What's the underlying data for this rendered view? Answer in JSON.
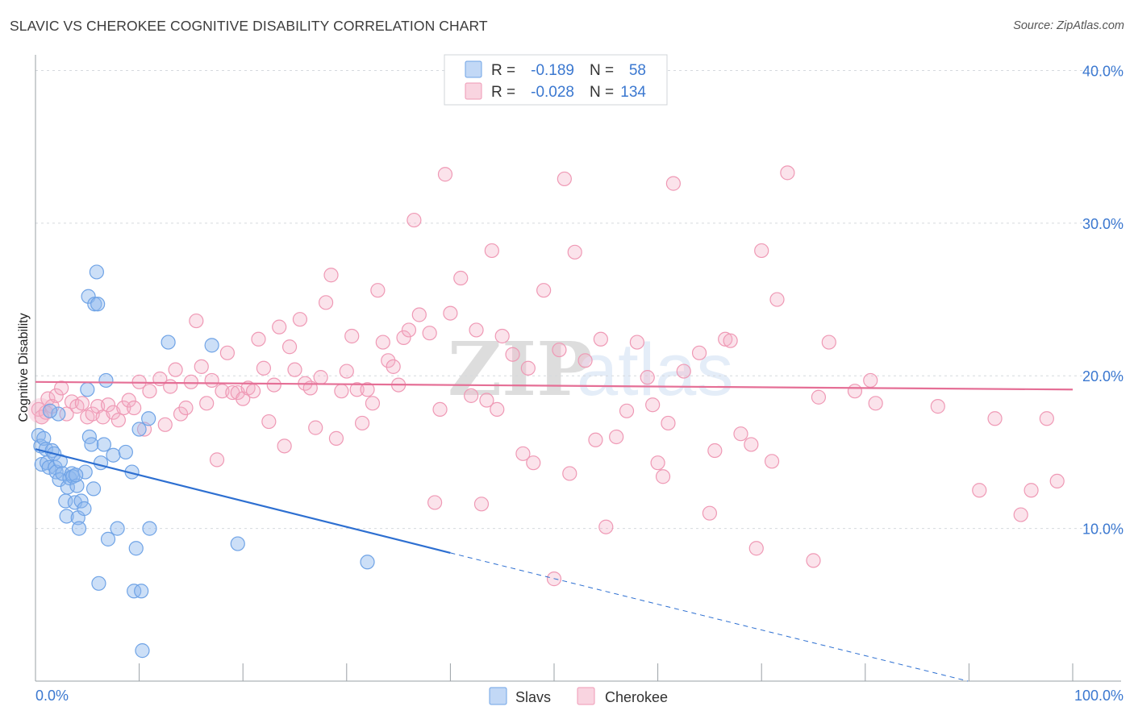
{
  "title": "SLAVIC VS CHEROKEE COGNITIVE DISABILITY CORRELATION CHART",
  "source": "Source: ZipAtlas.com",
  "colors": {
    "slavs": "#6fa3e6",
    "slavs_fill": "rgba(143,184,238,0.45)",
    "slavs_line": "#2d6fd1",
    "cherokee": "#ef99b5",
    "cherokee_fill": "rgba(244,176,199,0.35)",
    "cherokee_line": "#e56f96",
    "grid": "#d5d9de",
    "axis": "#9aa0a6",
    "tick_text": "#3b78d0"
  },
  "chart_data": {
    "type": "scatter",
    "title": "SLAVIC VS CHEROKEE COGNITIVE DISABILITY CORRELATION CHART",
    "xlabel": "",
    "ylabel": "Cognitive Disability",
    "xlim": [
      0,
      100
    ],
    "ylim": [
      0,
      40.5
    ],
    "x_tick_labels": [
      "0.0%",
      "100.0%"
    ],
    "y_ticks": [
      10,
      20,
      30,
      40
    ],
    "y_tick_labels": [
      "10.0%",
      "20.0%",
      "30.0%",
      "40.0%"
    ],
    "grid": true,
    "legend_position": "top-center",
    "legend": [
      {
        "series": "Slavs",
        "r_label": "R =",
        "r": "-0.189",
        "n_label": "N =",
        "n": "58"
      },
      {
        "series": "Cherokee",
        "r_label": "R =",
        "r": "-0.028",
        "n_label": "N =",
        "n": "134"
      }
    ],
    "series": [
      {
        "name": "Slavs",
        "trend": {
          "x": [
            0,
            40,
            100
          ],
          "y": [
            15.2,
            8.4,
            -1.7
          ],
          "dashed_after": 40
        },
        "points": [
          [
            0.3,
            16.1
          ],
          [
            0.5,
            15.4
          ],
          [
            0.8,
            15.9
          ],
          [
            1.0,
            15.2
          ],
          [
            0.6,
            14.2
          ],
          [
            1.1,
            14.3
          ],
          [
            1.3,
            14.0
          ],
          [
            1.6,
            15.1
          ],
          [
            1.8,
            14.9
          ],
          [
            1.9,
            14.0
          ],
          [
            2.0,
            13.7
          ],
          [
            2.2,
            17.5
          ],
          [
            2.3,
            13.2
          ],
          [
            2.4,
            14.4
          ],
          [
            2.6,
            13.6
          ],
          [
            2.9,
            11.8
          ],
          [
            3.0,
            10.8
          ],
          [
            3.1,
            12.7
          ],
          [
            3.3,
            13.3
          ],
          [
            3.5,
            13.6
          ],
          [
            3.6,
            13.4
          ],
          [
            3.8,
            11.7
          ],
          [
            4.0,
            12.8
          ],
          [
            4.1,
            10.7
          ],
          [
            4.2,
            10.0
          ],
          [
            4.4,
            11.8
          ],
          [
            4.7,
            11.3
          ],
          [
            4.8,
            13.7
          ],
          [
            5.0,
            19.1
          ],
          [
            5.2,
            16.0
          ],
          [
            5.4,
            15.5
          ],
          [
            5.6,
            12.6
          ],
          [
            5.1,
            25.2
          ],
          [
            5.7,
            24.7
          ],
          [
            6.0,
            24.7
          ],
          [
            5.9,
            26.8
          ],
          [
            6.3,
            14.3
          ],
          [
            6.6,
            15.5
          ],
          [
            6.8,
            19.7
          ],
          [
            7.0,
            9.3
          ],
          [
            7.5,
            14.8
          ],
          [
            7.9,
            10.0
          ],
          [
            8.7,
            15.0
          ],
          [
            9.3,
            13.7
          ],
          [
            9.5,
            5.9
          ],
          [
            9.7,
            8.7
          ],
          [
            10.0,
            16.5
          ],
          [
            10.2,
            5.9
          ],
          [
            10.3,
            2.0
          ],
          [
            10.9,
            17.2
          ],
          [
            11.0,
            10.0
          ],
          [
            12.8,
            22.2
          ],
          [
            17.0,
            22.0
          ],
          [
            19.5,
            9.0
          ],
          [
            32.0,
            7.8
          ],
          [
            6.1,
            6.4
          ],
          [
            3.9,
            13.5
          ],
          [
            1.4,
            17.7
          ]
        ]
      },
      {
        "name": "Cherokee",
        "trend": {
          "x": [
            0,
            100
          ],
          "y": [
            19.6,
            19.1
          ]
        },
        "points": [
          [
            0.3,
            17.8
          ],
          [
            0.6,
            17.3
          ],
          [
            1.0,
            17.6
          ],
          [
            1.2,
            18.5
          ],
          [
            1.6,
            18.0
          ],
          [
            2.0,
            18.7
          ],
          [
            2.5,
            19.2
          ],
          [
            3.0,
            17.5
          ],
          [
            3.5,
            18.3
          ],
          [
            4.0,
            18.0
          ],
          [
            4.5,
            18.2
          ],
          [
            5.0,
            17.3
          ],
          [
            5.5,
            17.5
          ],
          [
            6.0,
            18.0
          ],
          [
            6.5,
            17.3
          ],
          [
            7.0,
            18.1
          ],
          [
            7.5,
            17.6
          ],
          [
            8.0,
            17.1
          ],
          [
            8.5,
            17.9
          ],
          [
            9.0,
            18.4
          ],
          [
            9.5,
            17.9
          ],
          [
            10.0,
            19.6
          ],
          [
            10.5,
            16.5
          ],
          [
            11.0,
            19.0
          ],
          [
            12.0,
            19.8
          ],
          [
            12.5,
            16.8
          ],
          [
            13.0,
            19.3
          ],
          [
            13.5,
            20.4
          ],
          [
            14.0,
            17.5
          ],
          [
            14.5,
            17.9
          ],
          [
            15.0,
            19.6
          ],
          [
            15.5,
            23.6
          ],
          [
            16.0,
            20.6
          ],
          [
            16.5,
            18.2
          ],
          [
            17.0,
            19.7
          ],
          [
            17.5,
            14.5
          ],
          [
            18.0,
            19.0
          ],
          [
            18.5,
            21.5
          ],
          [
            19.0,
            18.9
          ],
          [
            19.5,
            18.9
          ],
          [
            20.0,
            18.5
          ],
          [
            20.5,
            19.2
          ],
          [
            21.0,
            19.0
          ],
          [
            21.5,
            22.4
          ],
          [
            22.0,
            20.5
          ],
          [
            22.5,
            17.0
          ],
          [
            23.0,
            19.4
          ],
          [
            23.5,
            23.2
          ],
          [
            24.0,
            15.4
          ],
          [
            24.5,
            21.9
          ],
          [
            25.0,
            20.4
          ],
          [
            25.5,
            23.7
          ],
          [
            26.0,
            19.5
          ],
          [
            26.5,
            19.2
          ],
          [
            27.0,
            16.6
          ],
          [
            27.5,
            19.9
          ],
          [
            28.0,
            24.8
          ],
          [
            28.5,
            26.6
          ],
          [
            29.0,
            15.9
          ],
          [
            29.5,
            19.0
          ],
          [
            30.0,
            20.3
          ],
          [
            30.5,
            22.6
          ],
          [
            31.0,
            19.1
          ],
          [
            31.5,
            16.9
          ],
          [
            32.0,
            19.1
          ],
          [
            32.5,
            18.2
          ],
          [
            33.0,
            25.6
          ],
          [
            33.5,
            22.2
          ],
          [
            34.0,
            21.0
          ],
          [
            34.5,
            20.6
          ],
          [
            35.0,
            19.4
          ],
          [
            35.5,
            22.5
          ],
          [
            36.0,
            23.0
          ],
          [
            36.5,
            30.2
          ],
          [
            37.0,
            24.0
          ],
          [
            38.0,
            22.8
          ],
          [
            38.5,
            11.7
          ],
          [
            39.0,
            17.8
          ],
          [
            39.5,
            33.2
          ],
          [
            40.0,
            24.1
          ],
          [
            41.0,
            26.4
          ],
          [
            42.0,
            18.7
          ],
          [
            42.5,
            23.0
          ],
          [
            43.0,
            11.6
          ],
          [
            43.5,
            18.4
          ],
          [
            44.0,
            28.2
          ],
          [
            44.5,
            17.8
          ],
          [
            45.0,
            22.6
          ],
          [
            46.0,
            21.4
          ],
          [
            47.0,
            14.9
          ],
          [
            47.5,
            20.5
          ],
          [
            48.0,
            14.3
          ],
          [
            49.0,
            25.6
          ],
          [
            50.0,
            6.7
          ],
          [
            50.5,
            21.7
          ],
          [
            51.0,
            32.9
          ],
          [
            51.5,
            13.6
          ],
          [
            52.0,
            28.1
          ],
          [
            53.0,
            21.0
          ],
          [
            54.0,
            15.8
          ],
          [
            54.5,
            22.4
          ],
          [
            55.0,
            10.1
          ],
          [
            56.0,
            16.0
          ],
          [
            57.0,
            17.7
          ],
          [
            58.0,
            22.2
          ],
          [
            59.0,
            19.9
          ],
          [
            59.5,
            18.1
          ],
          [
            60.0,
            14.3
          ],
          [
            60.5,
            13.4
          ],
          [
            61.0,
            16.9
          ],
          [
            61.5,
            32.6
          ],
          [
            62.5,
            20.3
          ],
          [
            64.0,
            21.5
          ],
          [
            65.0,
            11.0
          ],
          [
            65.5,
            15.1
          ],
          [
            66.5,
            22.4
          ],
          [
            67.0,
            22.3
          ],
          [
            68.0,
            16.2
          ],
          [
            69.0,
            15.5
          ],
          [
            69.5,
            8.7
          ],
          [
            70.0,
            28.2
          ],
          [
            71.0,
            14.4
          ],
          [
            71.5,
            25.0
          ],
          [
            72.5,
            33.3
          ],
          [
            75.0,
            7.9
          ],
          [
            75.5,
            18.6
          ],
          [
            76.5,
            22.2
          ],
          [
            79.0,
            19.0
          ],
          [
            80.5,
            19.7
          ],
          [
            81.0,
            18.2
          ],
          [
            87.0,
            18.0
          ],
          [
            91.0,
            12.5
          ],
          [
            92.5,
            17.2
          ],
          [
            95.0,
            10.9
          ],
          [
            96.0,
            12.5
          ],
          [
            97.5,
            17.2
          ],
          [
            98.5,
            13.1
          ]
        ]
      }
    ]
  }
}
